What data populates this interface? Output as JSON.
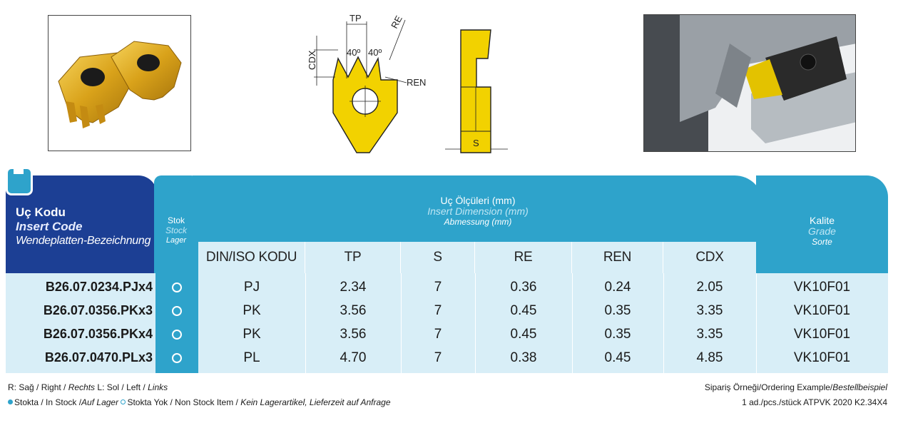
{
  "drawing_labels": {
    "tp": "TP",
    "re": "RE",
    "cdx": "CDX",
    "angle_left": "40º",
    "angle_right": "40º",
    "ren": "REN",
    "s": "S"
  },
  "header": {
    "code_tr": "Uç Kodu",
    "code_en": "Insert Code",
    "code_de": "Wendeplatten-Bezeichnung",
    "stock_tr": "Stok",
    "stock_en": "Stock",
    "stock_de": "Lager",
    "dims_tr": "Uç Ölçüleri (mm)",
    "dims_en": "Insert Dimension (mm)",
    "dims_de": "Abmessung (mm)",
    "grade_tr": "Kalite",
    "grade_en": "Grade",
    "grade_de": "Sorte",
    "columns": [
      "DIN/ISO KODU",
      "TP",
      "S",
      "RE",
      "REN",
      "CDX"
    ]
  },
  "rows": [
    {
      "code": "B26.07.0234.PJx4",
      "stock": "in-stock",
      "iso": "PJ",
      "tp": "2.34",
      "s": "7",
      "re": "0.36",
      "ren": "0.24",
      "cdx": "2.05",
      "grade": "VK10F01"
    },
    {
      "code": "B26.07.0356.PKx3",
      "stock": "in-stock",
      "iso": "PK",
      "tp": "3.56",
      "s": "7",
      "re": "0.45",
      "ren": "0.35",
      "cdx": "3.35",
      "grade": "VK10F01"
    },
    {
      "code": "B26.07.0356.PKx4",
      "stock": "in-stock",
      "iso": "PK",
      "tp": "3.56",
      "s": "7",
      "re": "0.45",
      "ren": "0.35",
      "cdx": "3.35",
      "grade": "VK10F01"
    },
    {
      "code": "B26.07.0470.PLx3",
      "stock": "in-stock",
      "iso": "PL",
      "tp": "4.70",
      "s": "7",
      "re": "0.38",
      "ren": "0.45",
      "cdx": "4.85",
      "grade": "VK10F01"
    }
  ],
  "footer": {
    "legend_line1_a": "R: Sağ / Right / ",
    "legend_line1_b": "Rechts",
    "legend_line1_c": " L: Sol / Left / ",
    "legend_line1_d": "Links",
    "legend_line2_a": "Stokta / In Stock /",
    "legend_line2_b": "Auf Lager",
    "legend_line2_c": "Stokta Yok / Non Stock Item / ",
    "legend_line2_d": "Kein Lagerartikel, Lieferzeit auf Anfrage",
    "example_a": "Sipariş Örneği/Ordering Example/",
    "example_b": "Bestellbeispiel",
    "example_line2": "1 ad./pcs./stück ATPVK 2020 K2.34X4"
  },
  "colors": {
    "navy": "#1c3f94",
    "cyan": "#2ea3cb",
    "light": "#d8eef7",
    "insert_gold": "#f2d200"
  }
}
